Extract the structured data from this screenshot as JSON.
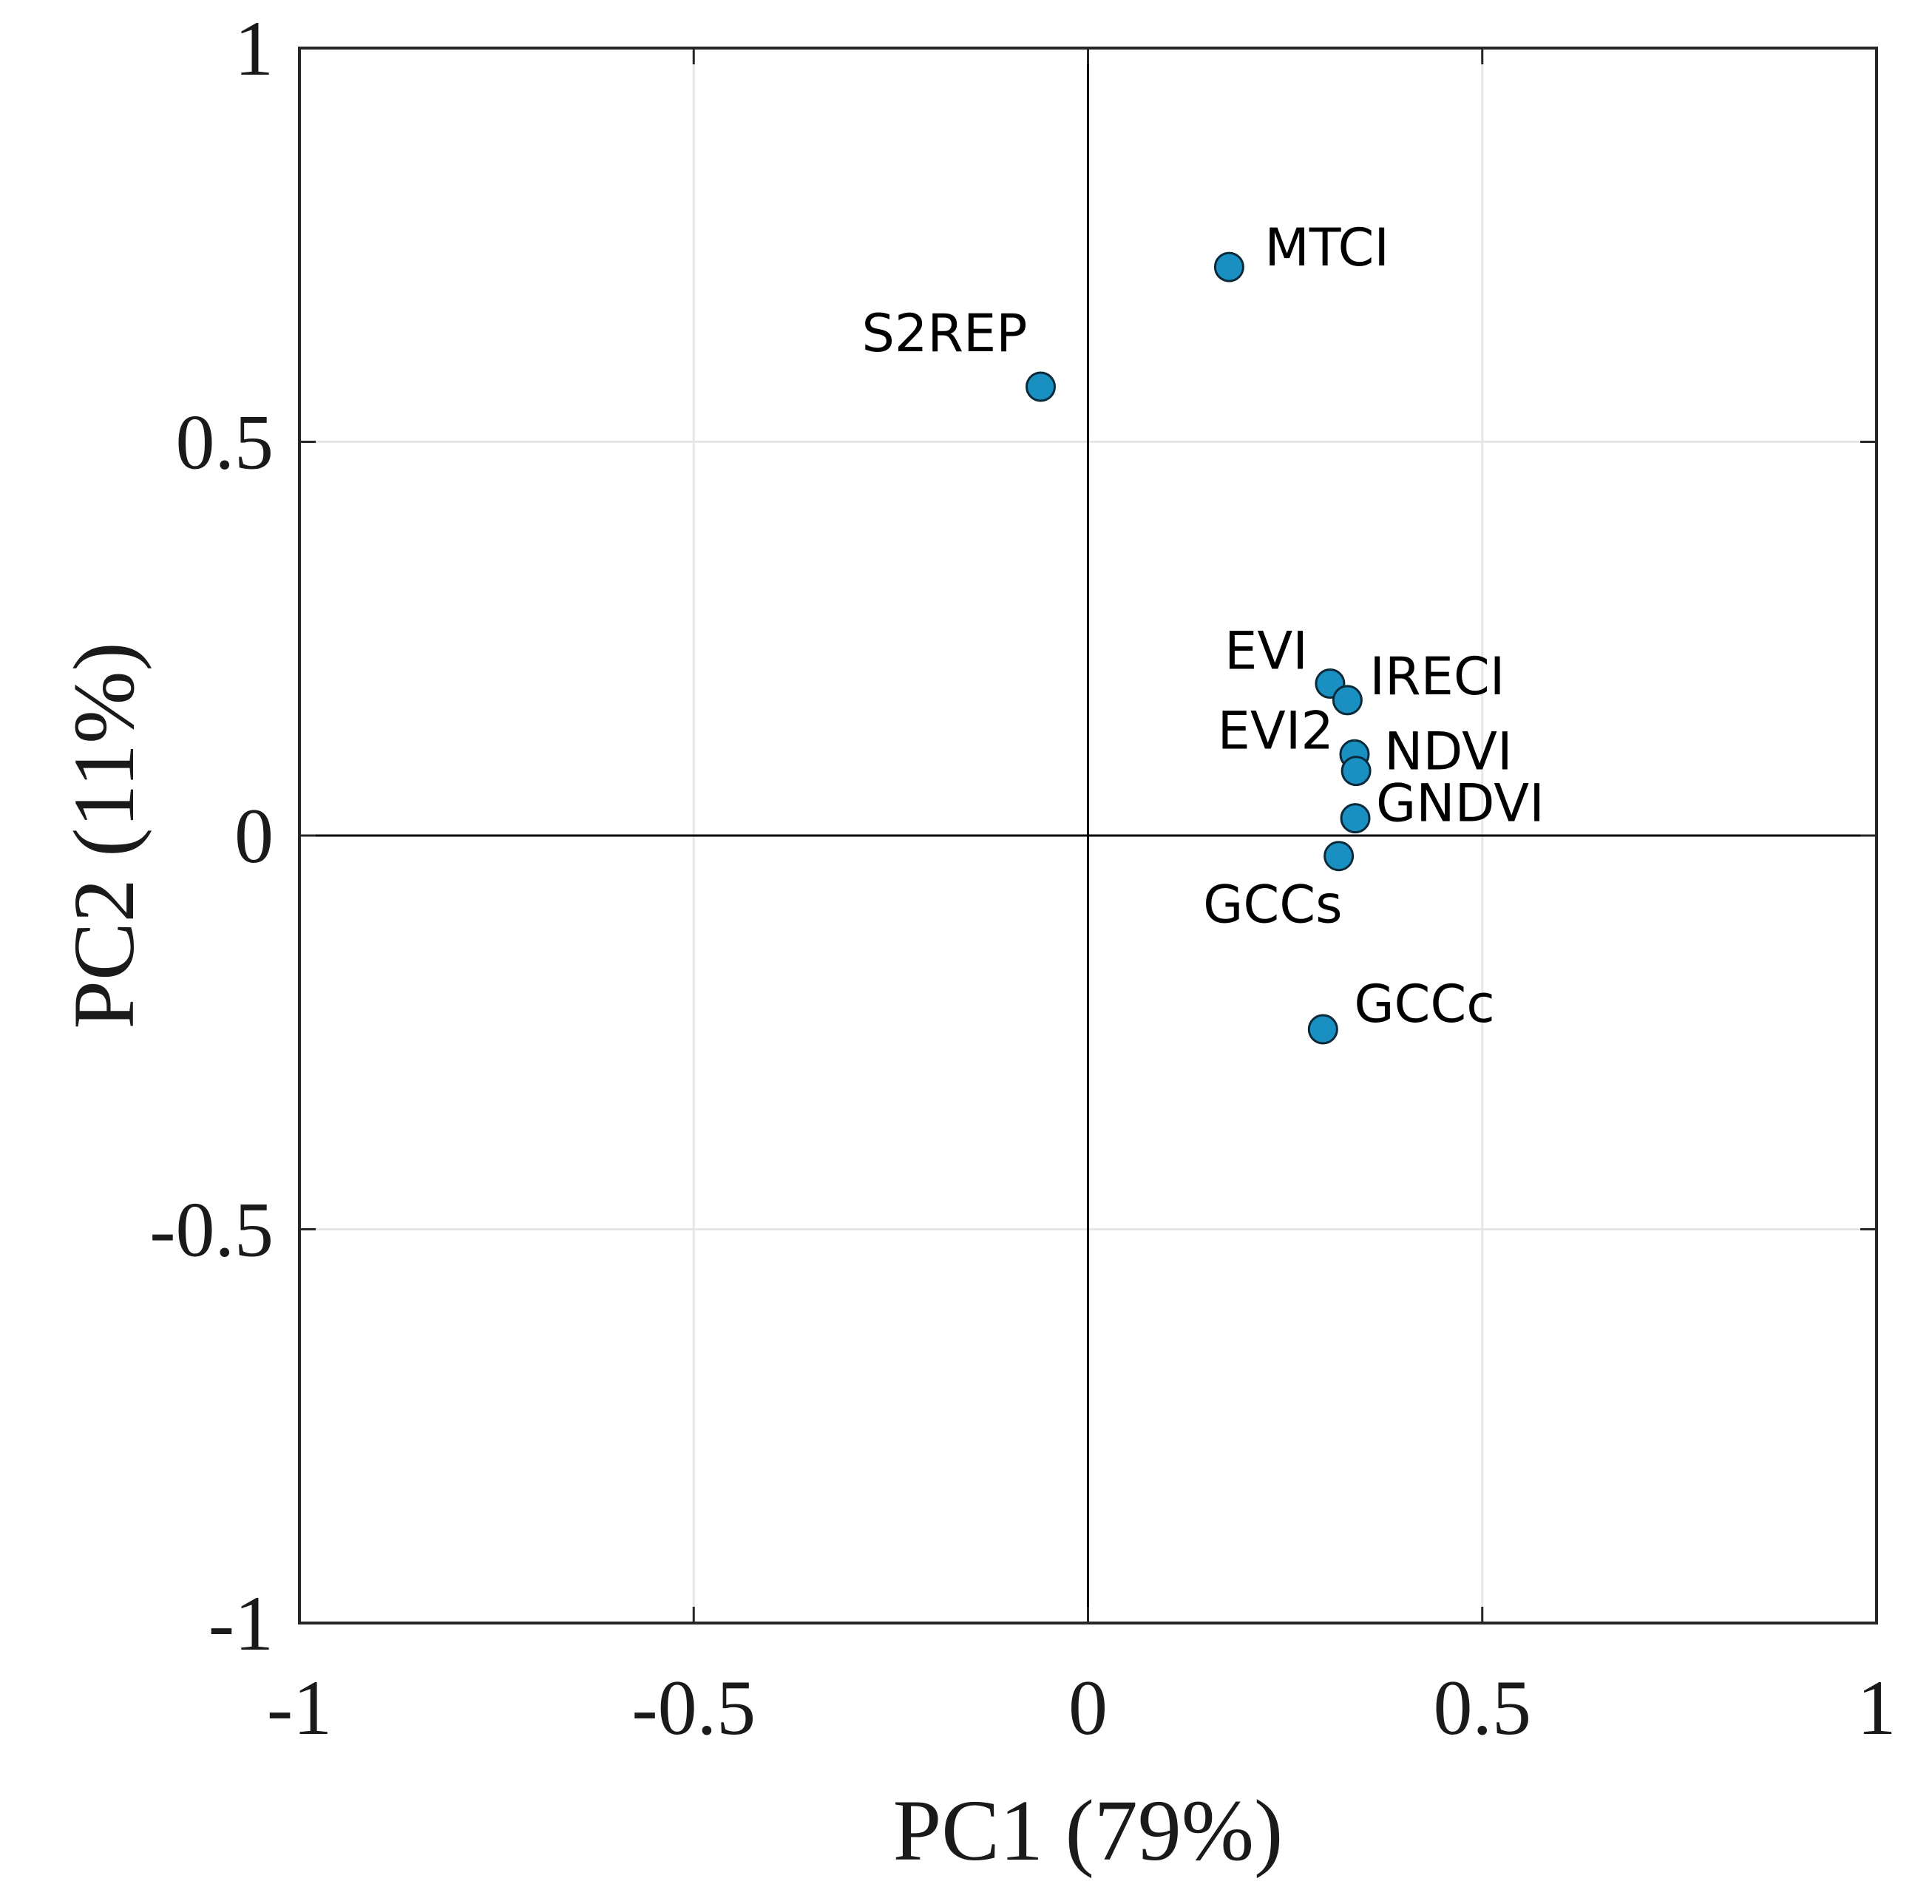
{
  "chart_data": {
    "type": "scatter",
    "title": "",
    "xlabel": "PC1 (79%)",
    "ylabel": "PC2 (11%)",
    "xlim": [
      -1,
      1
    ],
    "ylim": [
      -1,
      1
    ],
    "xticks": [
      -1,
      -0.5,
      0,
      0.5,
      1
    ],
    "yticks": [
      -1,
      -0.5,
      0,
      0.5,
      1
    ],
    "xtick_labels": [
      "-1",
      "-0.5",
      "0",
      "0.5",
      "1"
    ],
    "ytick_labels": [
      "-1",
      "-0.5",
      "0",
      "0.5",
      "1"
    ],
    "grid": true,
    "zero_lines": true,
    "marker_color": "#1a8fc2",
    "points": [
      {
        "label": "MTCI",
        "x": 0.179,
        "y": 0.722,
        "label_side": "right"
      },
      {
        "label": "S2REP",
        "x": -0.06,
        "y": 0.57,
        "label_side": "above-left"
      },
      {
        "label": "EVI",
        "x": 0.307,
        "y": 0.193,
        "label_side": "upper-left"
      },
      {
        "label": "IRECI",
        "x": 0.329,
        "y": 0.172,
        "label_side": "right"
      },
      {
        "label": "EVI2",
        "x": 0.338,
        "y": 0.103,
        "label_side": "left"
      },
      {
        "label": "NDVI",
        "x": 0.34,
        "y": 0.082,
        "label_side": "right"
      },
      {
        "label": "GNDVI",
        "x": 0.339,
        "y": 0.022,
        "label_side": "right"
      },
      {
        "label": "GCCs",
        "x": 0.318,
        "y": -0.026,
        "label_side": "below-left"
      },
      {
        "label": "GCCc",
        "x": 0.298,
        "y": -0.246,
        "label_side": "right"
      }
    ]
  }
}
